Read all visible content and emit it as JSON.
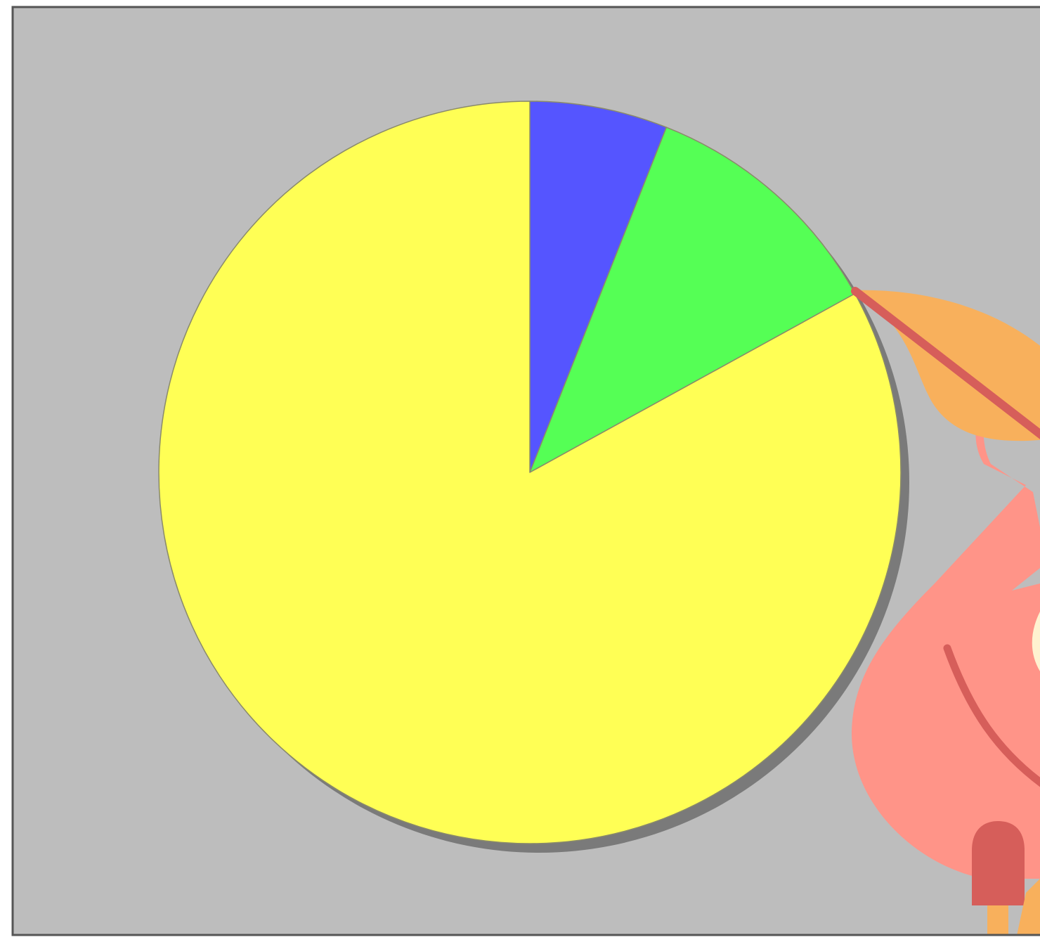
{
  "chart_data": {
    "type": "pie",
    "title": "",
    "slices": [
      {
        "label": "",
        "value": 6.0,
        "color": "#5555ff"
      },
      {
        "label": "",
        "value": 11.0,
        "color": "#55ff55"
      },
      {
        "label": "",
        "value": 83.0,
        "color": "#ffff55"
      }
    ],
    "start_angle_deg": 0,
    "direction": "clockwise",
    "legend": "none",
    "shadow": true
  },
  "colors": {
    "frame_background": "#bdbdbd",
    "frame_border": "#555555",
    "shadow": "#7a7a7a",
    "slice_stroke": "#8a8a6a"
  },
  "illustration": {
    "name": "decorative-cartoon-figure",
    "colors": {
      "skin": "#ff9488",
      "accent": "#f8b05c",
      "line": "#d65e5a",
      "highlight": "#fff2d0"
    }
  }
}
